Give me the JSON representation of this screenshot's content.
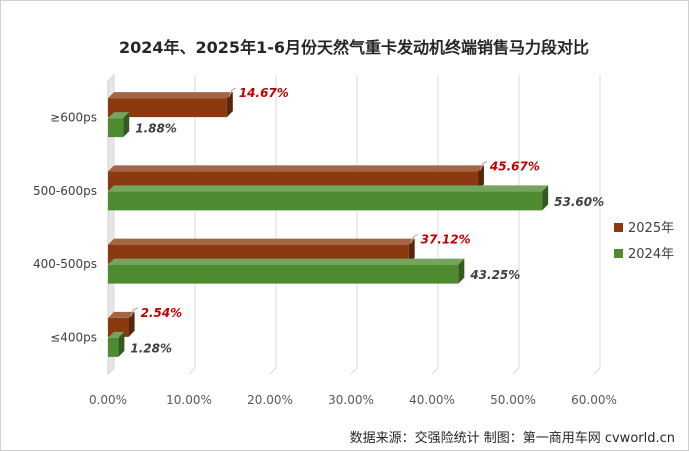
{
  "chart_data": {
    "type": "bar",
    "orientation": "horizontal",
    "title": "2024年、2025年1-6月份天然气重卡发动机终端销售马力段对比",
    "categories": [
      "≥600ps",
      "500-600ps",
      "400-500ps",
      "≤400ps"
    ],
    "series": [
      {
        "name": "2025年",
        "values": [
          14.67,
          45.67,
          37.12,
          2.54
        ],
        "labels": [
          "14.67%",
          "45.67%",
          "37.12%",
          "2.54%"
        ]
      },
      {
        "name": "2024年",
        "values": [
          1.88,
          53.6,
          43.25,
          1.28
        ],
        "labels": [
          "1.88%",
          "53.60%",
          "43.25%",
          "1.28%"
        ]
      }
    ],
    "x_ticks": [
      "0.00%",
      "10.00%",
      "20.00%",
      "30.00%",
      "40.00%",
      "50.00%",
      "60.00%"
    ],
    "xlim": [
      0,
      60
    ],
    "grid": "vertical",
    "legend_position": "right",
    "source_note": "数据来源：交强险统计    制图：第一商用车网 cvworld.cn",
    "colors": {
      "series_2025": "#8b3a10",
      "series_2024": "#4e8a30",
      "label_2025": "#c00000",
      "label_2024": "#404040"
    }
  }
}
